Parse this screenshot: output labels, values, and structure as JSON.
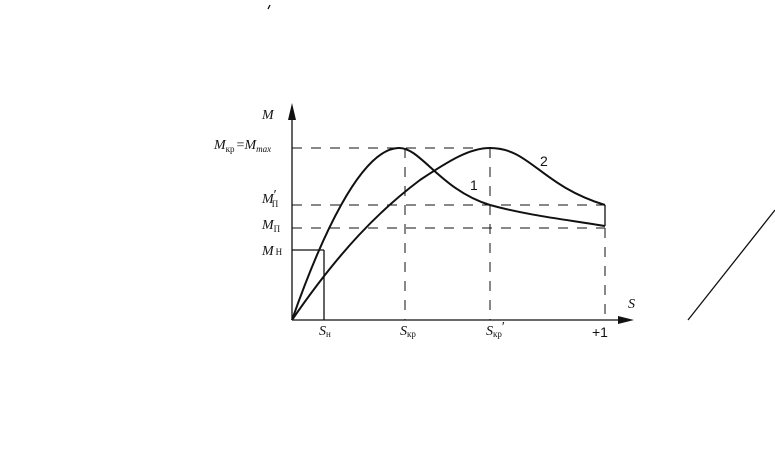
{
  "axes": {
    "y": "M",
    "x": "S"
  },
  "y_labels": {
    "m_max": {
      "left": "M",
      "left_sub": "кр",
      "sign": "=",
      "right": "M",
      "right_sub": "max"
    },
    "m_start_2": {
      "base": "M",
      "prime": "′",
      "sub": "П"
    },
    "m_start_1": {
      "base": "M",
      "sub": "П"
    },
    "m_nom": {
      "base": "M",
      "sub": "Н"
    }
  },
  "x_labels": {
    "s_nom": {
      "base": "S",
      "sub": "н"
    },
    "s_cr": {
      "base": "S",
      "sub": "кр"
    },
    "s_cr_2": {
      "base": "S",
      "sub": "кр",
      "prime": "′"
    },
    "s_one": "+1"
  },
  "curve_labels": [
    "1",
    "2"
  ]
}
